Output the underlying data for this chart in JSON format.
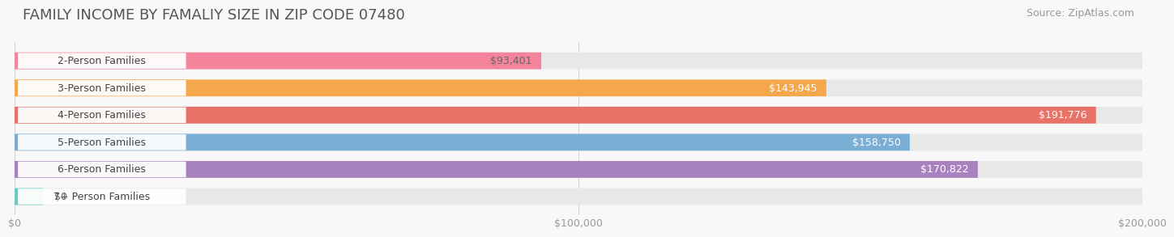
{
  "title": "FAMILY INCOME BY FAMALIY SIZE IN ZIP CODE 07480",
  "source": "Source: ZipAtlas.com",
  "categories": [
    "2-Person Families",
    "3-Person Families",
    "4-Person Families",
    "5-Person Families",
    "6-Person Families",
    "7+ Person Families"
  ],
  "values": [
    93401,
    143945,
    191776,
    158750,
    170822,
    0
  ],
  "labels": [
    "$93,401",
    "$143,945",
    "$191,776",
    "$158,750",
    "$170,822",
    "$0"
  ],
  "bar_colors": [
    "#F4839C",
    "#F5A84B",
    "#E87268",
    "#7BAED4",
    "#A882BE",
    "#6EC8C4"
  ],
  "label_colors": [
    "#666666",
    "#ffffff",
    "#ffffff",
    "#ffffff",
    "#ffffff",
    "#666666"
  ],
  "bar_bg_color": "#E8E8E8",
  "background_color": "#F8F8F8",
  "xlim": [
    0,
    200000
  ],
  "xticklabels": [
    "$0",
    "$100,000",
    "$200,000"
  ],
  "title_fontsize": 13,
  "source_fontsize": 9,
  "bar_label_fontsize": 9,
  "cat_label_fontsize": 9,
  "tick_fontsize": 9
}
